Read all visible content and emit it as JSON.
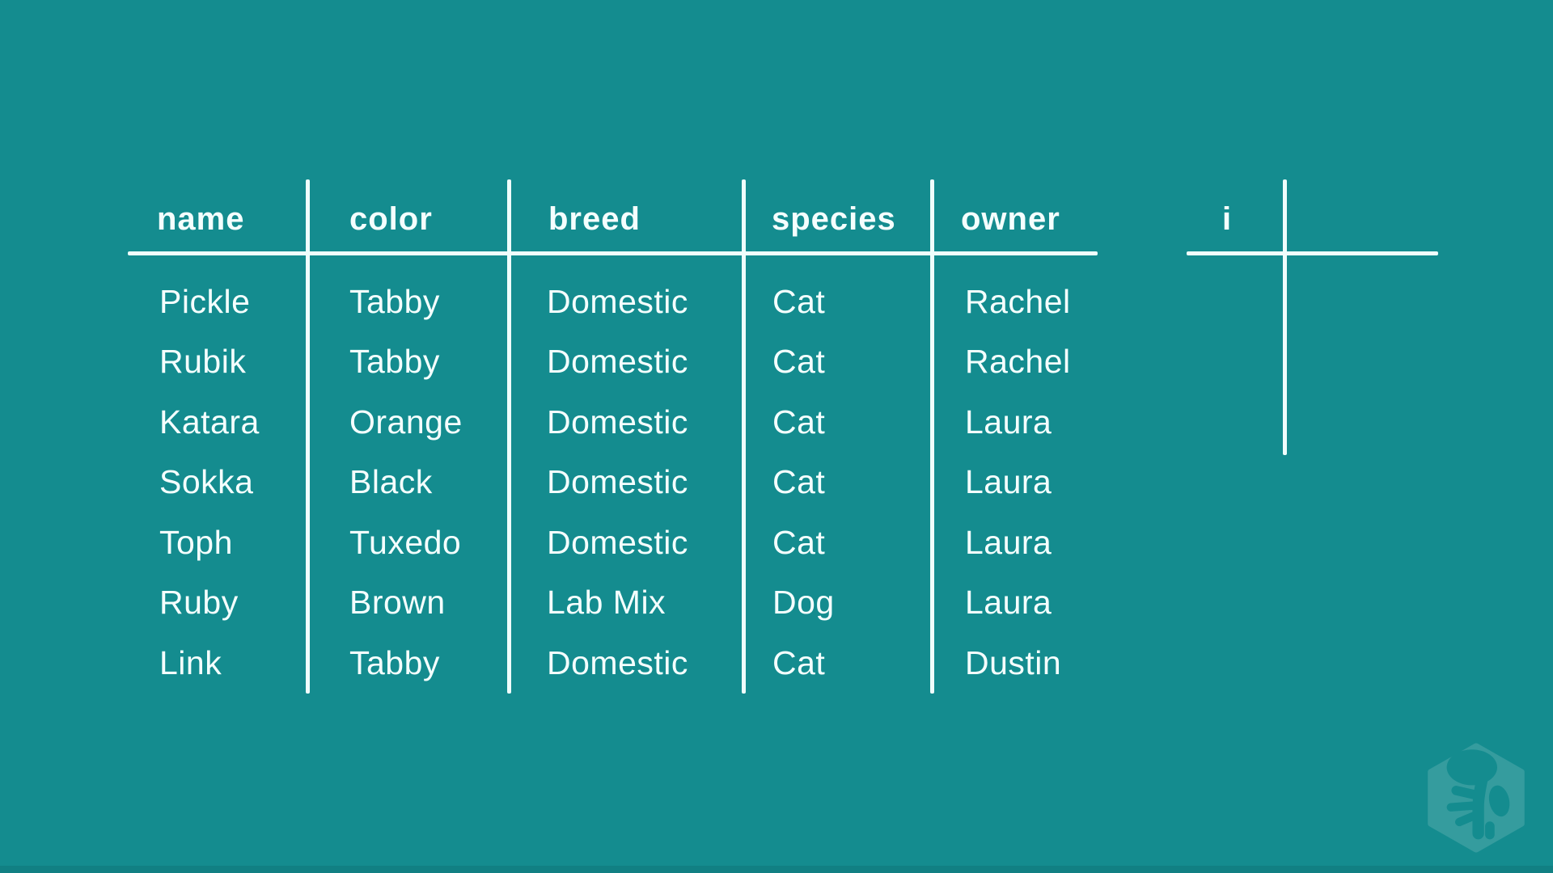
{
  "colors": {
    "background": "#148C8F",
    "line": "#EFFEFC",
    "text": "#F4FFFE",
    "logo": "rgba(255,255,255,0.14)",
    "bottom_bar": "rgba(0,25,30,0.10)"
  },
  "chart_data": {
    "type": "table",
    "title": "",
    "columns": [
      "name",
      "color",
      "breed",
      "species",
      "owner"
    ],
    "rows": [
      [
        "Pickle",
        "Tabby",
        "Domestic",
        "Cat",
        "Rachel"
      ],
      [
        "Rubik",
        "Tabby",
        "Domestic",
        "Cat",
        "Rachel"
      ],
      [
        "Katara",
        "Orange",
        "Domestic",
        "Cat",
        "Laura"
      ],
      [
        "Sokka",
        "Black",
        "Domestic",
        "Cat",
        "Laura"
      ],
      [
        "Toph",
        "Tuxedo",
        "Domestic",
        "Cat",
        "Laura"
      ],
      [
        "Ruby",
        "Brown",
        "Lab Mix",
        "Dog",
        "Laura"
      ],
      [
        "Link",
        "Tabby",
        "Domestic",
        "Cat",
        "Dustin"
      ]
    ],
    "layout_hints": {
      "header_style": "bold",
      "grid": "column-dividers-with-header-underline",
      "background": "teal"
    },
    "secondary_table": {
      "columns": [
        "i"
      ],
      "rows": []
    }
  },
  "logo": {
    "icon": "treehouse-logo"
  }
}
